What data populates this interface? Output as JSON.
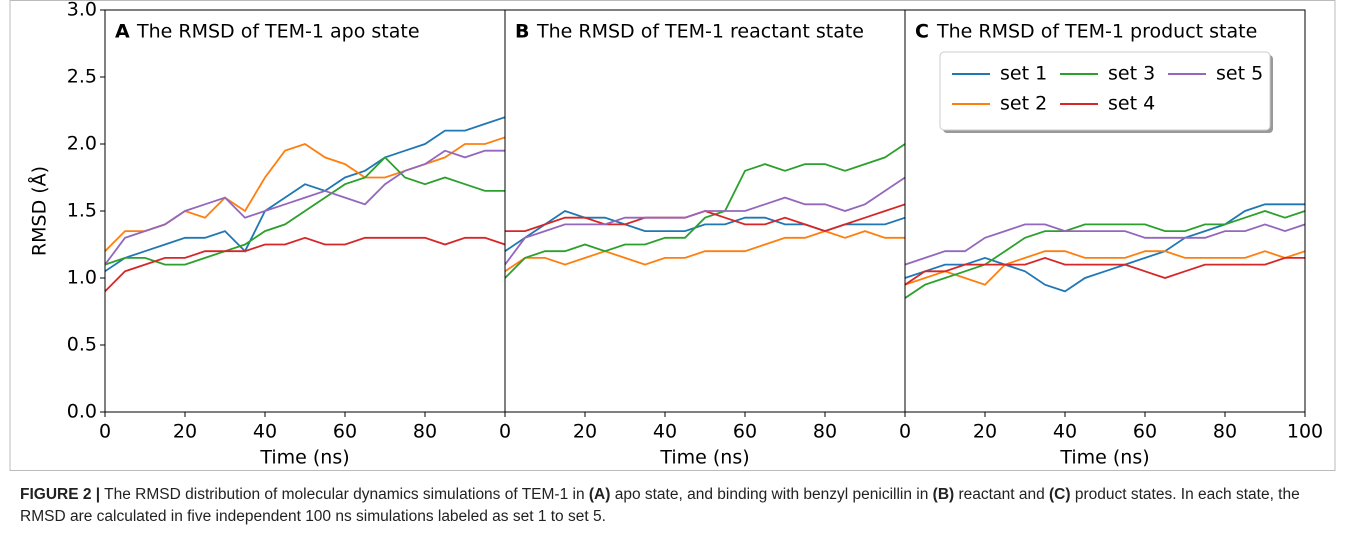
{
  "chart_data": [
    {
      "type": "line",
      "panel_label": "A",
      "title": "The RMSD of TEM-1 apo state",
      "xlabel": "Time (ns)",
      "ylabel": "RMSD (Å)",
      "x": [
        0,
        5,
        10,
        15,
        20,
        25,
        30,
        35,
        40,
        45,
        50,
        55,
        60,
        65,
        70,
        75,
        80,
        85,
        90,
        95,
        100
      ],
      "xlim": [
        0,
        100
      ],
      "xticks": [
        0,
        20,
        40,
        60,
        80
      ],
      "ylim": [
        0,
        3
      ],
      "yticks": [
        {
          "value": 0,
          "label": "0.0"
        },
        {
          "value": 0.5,
          "label": "0.5"
        },
        {
          "value": 1,
          "label": "1.0"
        },
        {
          "value": 1.5,
          "label": "1.5"
        },
        {
          "value": 2,
          "label": "2.0"
        },
        {
          "value": 2.5,
          "label": "2.5"
        },
        {
          "value": 3,
          "label": "3.0"
        }
      ],
      "series": [
        {
          "color": "#1f77b4",
          "values": [
            1.05,
            1.15,
            1.2,
            1.25,
            1.3,
            1.3,
            1.35,
            1.2,
            1.5,
            1.6,
            1.7,
            1.65,
            1.75,
            1.8,
            1.9,
            1.95,
            2.0,
            2.1,
            2.1,
            2.15,
            2.2
          ]
        },
        {
          "color": "#ff7f0e",
          "values": [
            1.2,
            1.35,
            1.35,
            1.4,
            1.5,
            1.45,
            1.6,
            1.5,
            1.75,
            1.95,
            2.0,
            1.9,
            1.85,
            1.75,
            1.75,
            1.8,
            1.85,
            1.9,
            2.0,
            2.0,
            2.05
          ]
        },
        {
          "color": "#2ca02c",
          "values": [
            1.1,
            1.15,
            1.15,
            1.1,
            1.1,
            1.15,
            1.2,
            1.25,
            1.35,
            1.4,
            1.5,
            1.6,
            1.7,
            1.75,
            1.9,
            1.75,
            1.7,
            1.75,
            1.7,
            1.65,
            1.65
          ]
        },
        {
          "color": "#d62728",
          "values": [
            0.9,
            1.05,
            1.1,
            1.15,
            1.15,
            1.2,
            1.2,
            1.2,
            1.25,
            1.25,
            1.3,
            1.25,
            1.25,
            1.3,
            1.3,
            1.3,
            1.3,
            1.25,
            1.3,
            1.3,
            1.25
          ]
        },
        {
          "color": "#9467bd",
          "values": [
            1.1,
            1.3,
            1.35,
            1.4,
            1.5,
            1.55,
            1.6,
            1.45,
            1.5,
            1.55,
            1.6,
            1.65,
            1.6,
            1.55,
            1.7,
            1.8,
            1.85,
            1.95,
            1.9,
            1.95,
            1.95
          ]
        }
      ]
    },
    {
      "type": "line",
      "panel_label": "B",
      "title": "The RMSD of TEM-1 reactant state",
      "xlabel": "Time (ns)",
      "x": [
        0,
        5,
        10,
        15,
        20,
        25,
        30,
        35,
        40,
        45,
        50,
        55,
        60,
        65,
        70,
        75,
        80,
        85,
        90,
        95,
        100
      ],
      "xlim": [
        0,
        100
      ],
      "xticks": [
        0,
        20,
        40,
        60,
        80
      ],
      "ylim": [
        0,
        3
      ],
      "series": [
        {
          "color": "#1f77b4",
          "values": [
            1.2,
            1.3,
            1.4,
            1.5,
            1.45,
            1.45,
            1.4,
            1.35,
            1.35,
            1.35,
            1.4,
            1.4,
            1.45,
            1.45,
            1.4,
            1.4,
            1.35,
            1.4,
            1.4,
            1.4,
            1.45
          ]
        },
        {
          "color": "#ff7f0e",
          "values": [
            1.05,
            1.15,
            1.15,
            1.1,
            1.15,
            1.2,
            1.15,
            1.1,
            1.15,
            1.15,
            1.2,
            1.2,
            1.2,
            1.25,
            1.3,
            1.3,
            1.35,
            1.3,
            1.35,
            1.3,
            1.3
          ]
        },
        {
          "color": "#2ca02c",
          "values": [
            1.0,
            1.15,
            1.2,
            1.2,
            1.25,
            1.2,
            1.25,
            1.25,
            1.3,
            1.3,
            1.45,
            1.5,
            1.8,
            1.85,
            1.8,
            1.85,
            1.85,
            1.8,
            1.85,
            1.9,
            2.0
          ]
        },
        {
          "color": "#d62728",
          "values": [
            1.35,
            1.35,
            1.4,
            1.45,
            1.45,
            1.4,
            1.4,
            1.45,
            1.45,
            1.45,
            1.5,
            1.45,
            1.4,
            1.4,
            1.45,
            1.4,
            1.35,
            1.4,
            1.45,
            1.5,
            1.55
          ]
        },
        {
          "color": "#9467bd",
          "values": [
            1.1,
            1.3,
            1.35,
            1.4,
            1.4,
            1.4,
            1.45,
            1.45,
            1.45,
            1.45,
            1.5,
            1.5,
            1.5,
            1.55,
            1.6,
            1.55,
            1.55,
            1.5,
            1.55,
            1.65,
            1.75
          ]
        }
      ]
    },
    {
      "type": "line",
      "panel_label": "C",
      "title": "The RMSD of TEM-1 product state",
      "xlabel": "Time (ns)",
      "x": [
        0,
        5,
        10,
        15,
        20,
        25,
        30,
        35,
        40,
        45,
        50,
        55,
        60,
        65,
        70,
        75,
        80,
        85,
        90,
        95,
        100
      ],
      "xlim": [
        0,
        100
      ],
      "xticks": [
        0,
        20,
        40,
        60,
        80,
        100
      ],
      "ylim": [
        0,
        3
      ],
      "legend": "upper right",
      "series": [
        {
          "name": "set 1",
          "color": "#1f77b4",
          "values": [
            1.0,
            1.05,
            1.1,
            1.1,
            1.15,
            1.1,
            1.05,
            0.95,
            0.9,
            1.0,
            1.05,
            1.1,
            1.15,
            1.2,
            1.3,
            1.35,
            1.4,
            1.5,
            1.55,
            1.55,
            1.55
          ]
        },
        {
          "name": "set 2",
          "color": "#ff7f0e",
          "values": [
            0.95,
            1.0,
            1.05,
            1.0,
            0.95,
            1.1,
            1.15,
            1.2,
            1.2,
            1.15,
            1.15,
            1.15,
            1.2,
            1.2,
            1.15,
            1.15,
            1.15,
            1.15,
            1.2,
            1.15,
            1.2
          ]
        },
        {
          "name": "set 3",
          "color": "#2ca02c",
          "values": [
            0.85,
            0.95,
            1.0,
            1.05,
            1.1,
            1.2,
            1.3,
            1.35,
            1.35,
            1.4,
            1.4,
            1.4,
            1.4,
            1.35,
            1.35,
            1.4,
            1.4,
            1.45,
            1.5,
            1.45,
            1.5
          ]
        },
        {
          "name": "set 4",
          "color": "#d62728",
          "values": [
            0.95,
            1.05,
            1.05,
            1.1,
            1.1,
            1.1,
            1.1,
            1.15,
            1.1,
            1.1,
            1.1,
            1.1,
            1.05,
            1.0,
            1.05,
            1.1,
            1.1,
            1.1,
            1.1,
            1.15,
            1.15
          ]
        },
        {
          "name": "set 5",
          "color": "#9467bd",
          "values": [
            1.1,
            1.15,
            1.2,
            1.2,
            1.3,
            1.35,
            1.4,
            1.4,
            1.35,
            1.35,
            1.35,
            1.35,
            1.3,
            1.3,
            1.3,
            1.3,
            1.35,
            1.35,
            1.4,
            1.35,
            1.4
          ]
        }
      ]
    }
  ],
  "caption": {
    "label": "FIGURE 2 |",
    "segments": [
      "The RMSD distribution of molecular dynamics simulations of TEM-1 in ",
      "(A)",
      " apo state, and binding with benzyl penicillin in ",
      "(B)",
      " reactant and ",
      "(C)",
      " product states. In each state, the RMSD are calculated in five independent 100 ns simulations labeled as set 1 to set 5."
    ]
  }
}
